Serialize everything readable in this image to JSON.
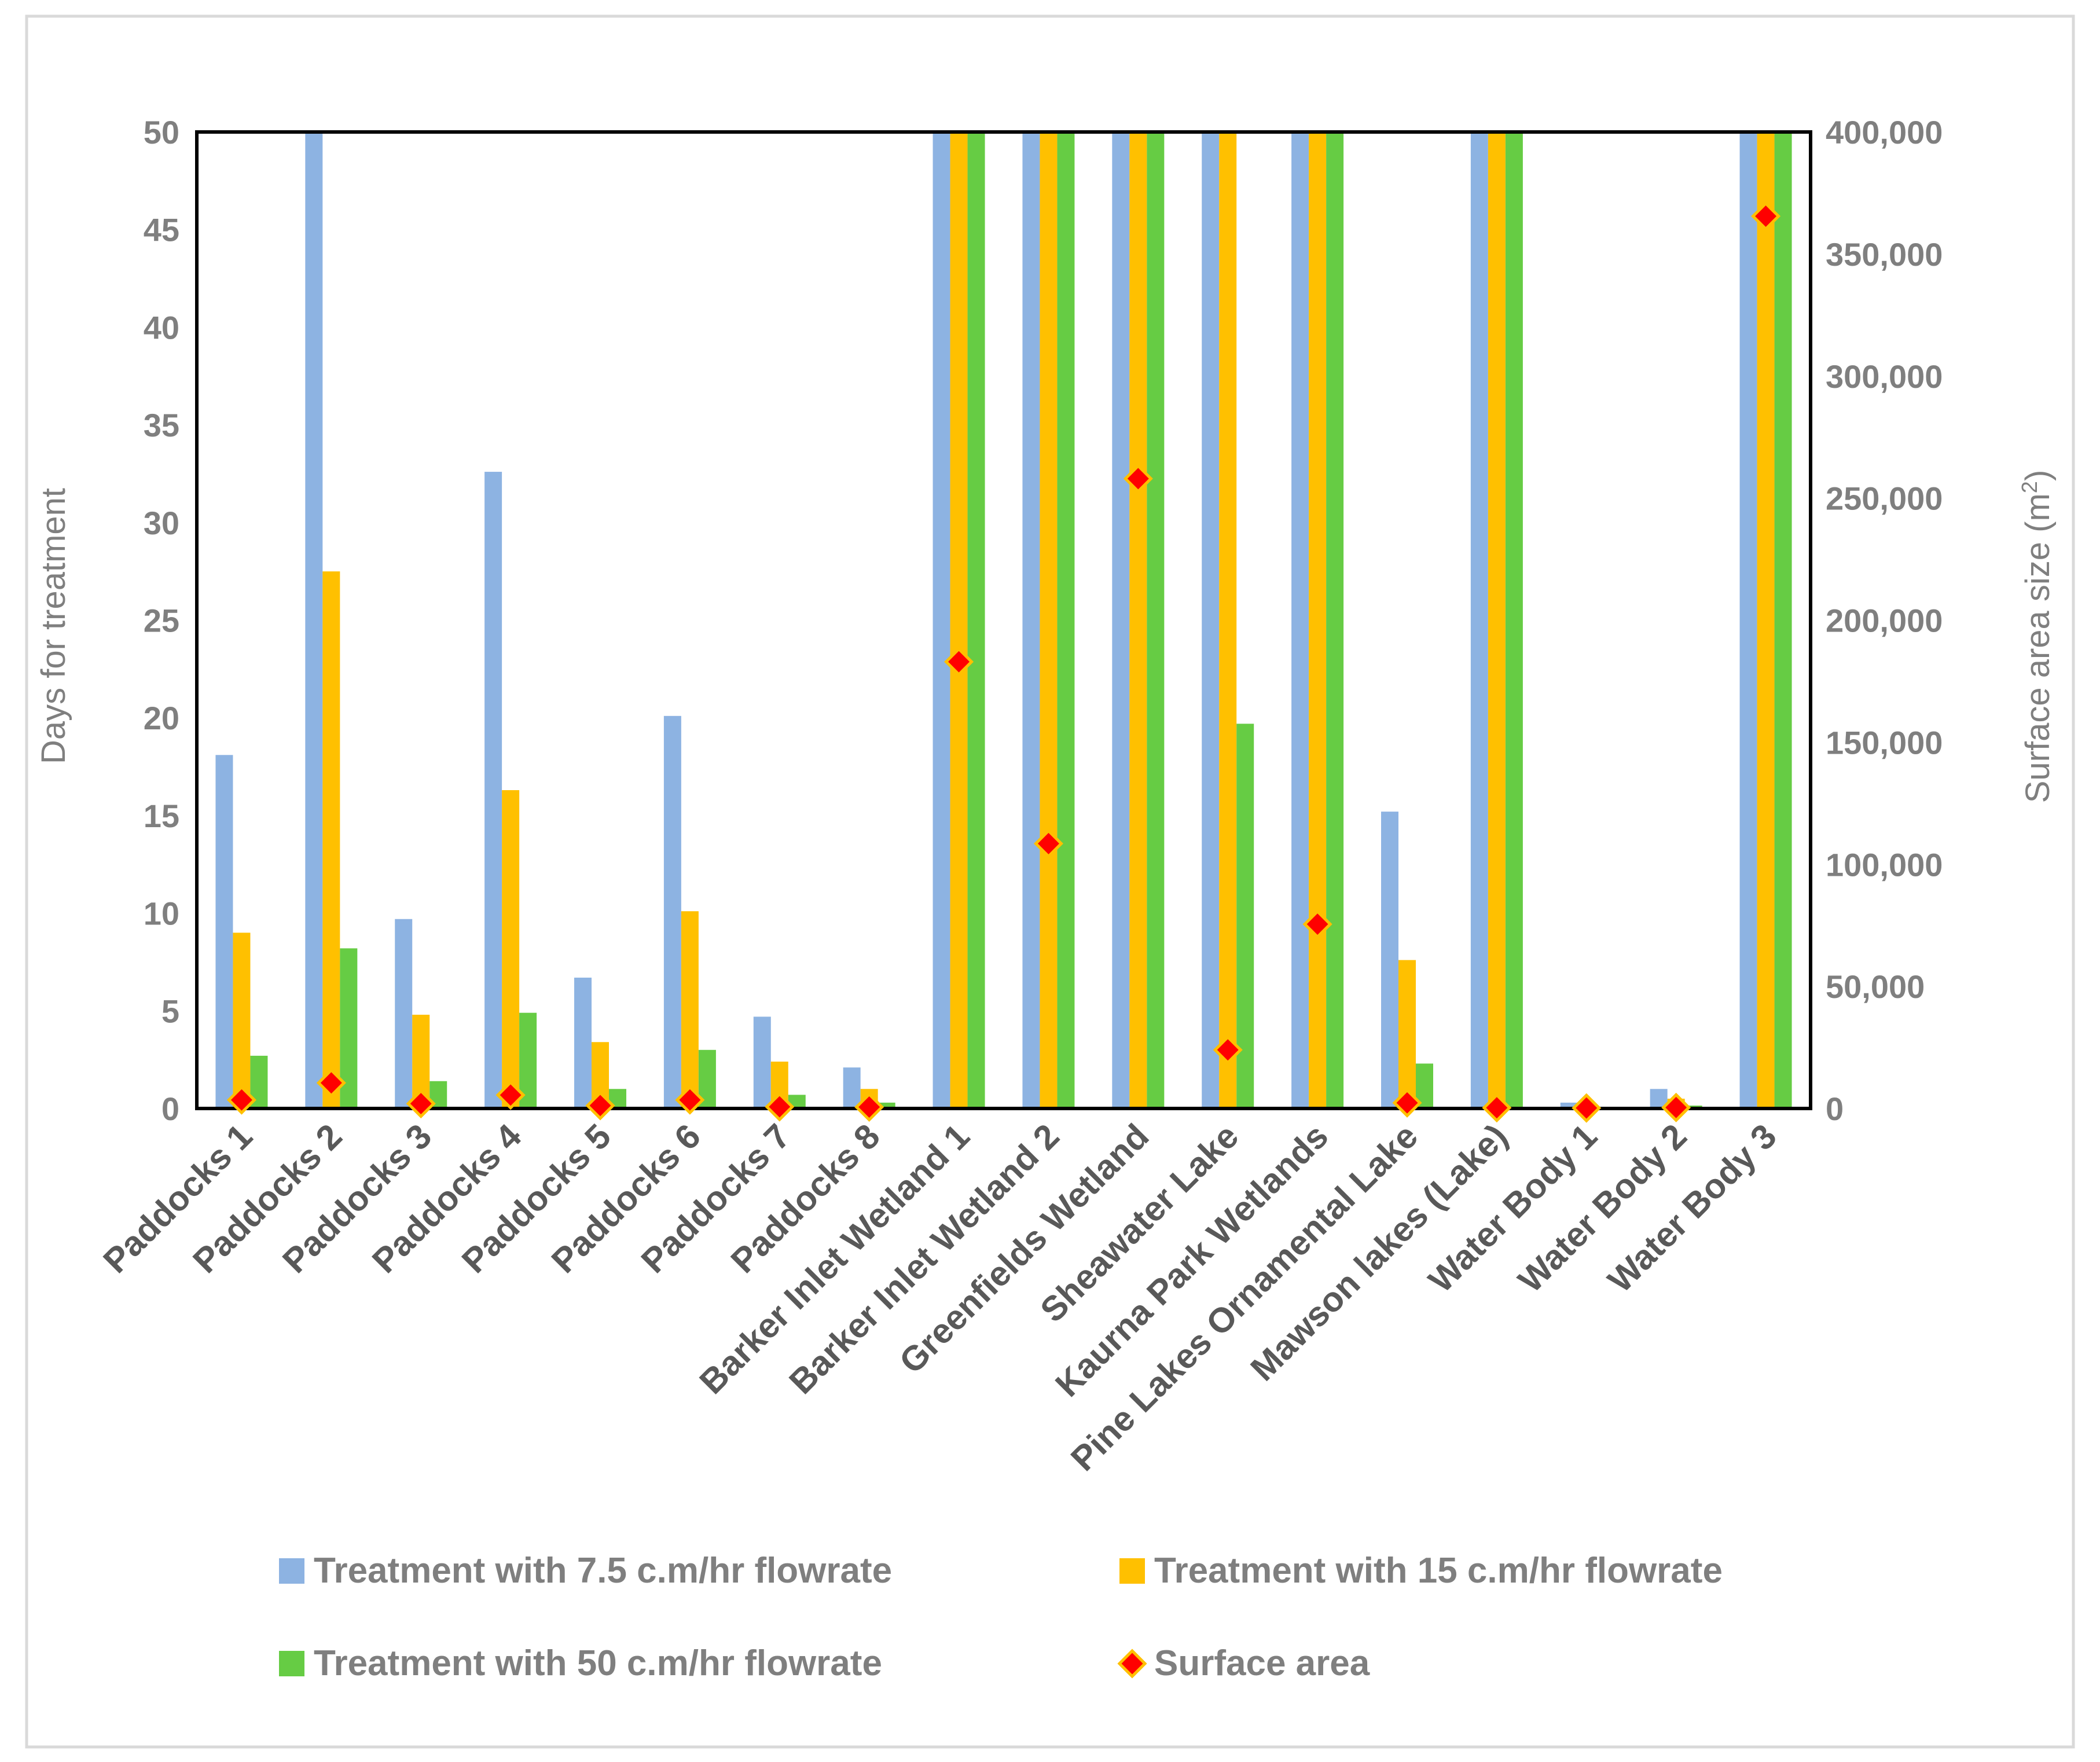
{
  "chart_data": {
    "type": "bar",
    "title": "",
    "categories": [
      "Paddocks 1",
      "Paddocks 2",
      "Paddocks 3",
      "Paddocks 4",
      "Paddocks 5",
      "Paddocks 6",
      "Paddocks 7",
      "Paddocks 8",
      "Barker Inlet Wetland 1",
      "Barker Inlet Wetland 2",
      "Greenfields Wetland",
      "Sheawater Lake",
      "Kaurna Park Wetlands",
      "Pine Lakes Ornamental Lake",
      "Mawson lakes (Lake)",
      "Water Body 1",
      "Water Body 2",
      "Water Body 3"
    ],
    "ylabel": "Days for treatment",
    "y2label": "Surface area size (m²)",
    "ylim": [
      0,
      50
    ],
    "y2lim": [
      0,
      400000
    ],
    "yticks": [
      "0",
      "5",
      "10",
      "15",
      "20",
      "25",
      "30",
      "35",
      "40",
      "45",
      "50"
    ],
    "y2ticks": [
      "0",
      "50,000",
      "100,000",
      "150,000",
      "200,000",
      "250,000",
      "300,000",
      "350,000",
      "400,000"
    ],
    "legend_position": "bottom",
    "series": [
      {
        "name": "Treatment with 7.5 c.m/hr flowrate",
        "color": "#8db3e2",
        "axis": "left",
        "kind": "bar",
        "values": [
          18.1,
          50,
          9.7,
          32.6,
          6.7,
          20.1,
          4.7,
          2.1,
          50,
          50,
          50,
          50,
          50,
          15.2,
          50,
          0.3,
          1.0,
          50
        ]
      },
      {
        "name": "Treatment with 15 c.m/hr flowrate",
        "color": "#ffc000",
        "axis": "left",
        "kind": "bar",
        "values": [
          9.0,
          27.5,
          4.8,
          16.3,
          3.4,
          10.1,
          2.4,
          1.0,
          50,
          50,
          50,
          50,
          50,
          7.6,
          50,
          0.15,
          0.5,
          50
        ]
      },
      {
        "name": "Treatment with 50 c.m/hr flowrate",
        "color": "#66cc44",
        "axis": "left",
        "kind": "bar",
        "values": [
          2.7,
          8.2,
          1.4,
          4.9,
          1.0,
          3.0,
          0.7,
          0.3,
          50,
          50,
          50,
          19.7,
          50,
          2.3,
          50,
          0.05,
          0.15,
          50
        ]
      },
      {
        "name": "Surface area",
        "color": "#ff0000",
        "edge": "#ffc000",
        "axis": "right",
        "kind": "marker",
        "values": [
          3500,
          10500,
          2000,
          5500,
          1200,
          3500,
          700,
          600,
          183000,
          108500,
          258000,
          24000,
          75500,
          2300,
          300,
          200,
          400,
          365500
        ]
      }
    ]
  }
}
